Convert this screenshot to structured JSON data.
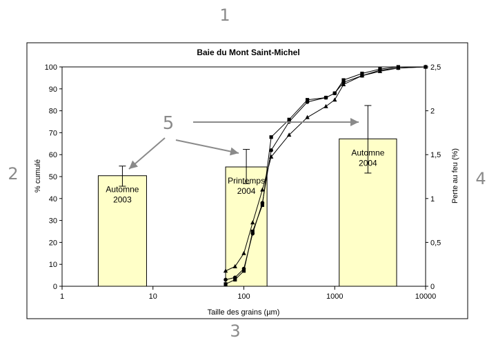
{
  "annotations": {
    "top": "1",
    "left": "2",
    "bottom": "3",
    "right": "4",
    "center": "5"
  },
  "chart_data": {
    "type": "line+bar",
    "title": "Baie du Mont Saint-Michel",
    "xlabel": "Taille des grains (µm)",
    "ylabel": "% cumulé",
    "y2label": "Perte au feu (%)",
    "xscale": "log",
    "xlim": [
      1,
      10000
    ],
    "ylim": [
      0,
      100
    ],
    "y2lim": [
      0,
      2.5
    ],
    "x_ticks": [
      "1",
      "10",
      "100",
      "1000",
      "10000"
    ],
    "y_ticks": [
      "0",
      "10",
      "20",
      "30",
      "40",
      "50",
      "60",
      "70",
      "80",
      "90",
      "100"
    ],
    "y2_ticks": [
      "0",
      "0,5",
      "1",
      "1,5",
      "2",
      "2,5"
    ],
    "grid": false,
    "bars": [
      {
        "label_lines": [
          "Automne",
          "2003"
        ],
        "x_from": 2.5,
        "x_to": 8.5,
        "value": 1.26,
        "err_low": 1.14,
        "err_high": 1.37
      },
      {
        "label_lines": [
          "Printemps",
          "2004"
        ],
        "x_from": 63,
        "x_to": 180,
        "value": 1.36,
        "err_low": 1.17,
        "err_high": 1.56
      },
      {
        "label_lines": [
          "Automne",
          "2004"
        ],
        "x_from": 1120,
        "x_to": 4800,
        "value": 1.68,
        "err_low": 1.29,
        "err_high": 2.06
      }
    ],
    "series": [
      {
        "marker": "circle",
        "x": [
          63,
          80,
          100,
          125,
          160,
          200,
          315,
          500,
          800,
          1000,
          1250,
          2000,
          3150,
          5000,
          10000
        ],
        "y": [
          3,
          4,
          8,
          24,
          38,
          62,
          75,
          84,
          86,
          88,
          93,
          96,
          98.5,
          99.5,
          100
        ]
      },
      {
        "marker": "square",
        "x": [
          63,
          80,
          100,
          125,
          160,
          200,
          315,
          500,
          800,
          1000,
          1250,
          2000,
          3150,
          5000,
          10000
        ],
        "y": [
          1,
          3,
          7,
          25,
          37,
          68,
          76,
          85,
          86,
          88,
          94,
          97,
          99,
          100,
          100
        ]
      },
      {
        "marker": "triangle",
        "x": [
          63,
          80,
          100,
          125,
          160,
          200,
          315,
          500,
          800,
          1000,
          1250,
          2000,
          3150,
          5000,
          10000
        ],
        "y": [
          7,
          9,
          15,
          29,
          44,
          59,
          69,
          77,
          82,
          85,
          92,
          96,
          98,
          99.5,
          100
        ]
      }
    ],
    "arrows": [
      {
        "from_xy": [
          239,
          200
        ],
        "to_xy": [
          187,
          245
        ]
      },
      {
        "from_xy": [
          255,
          203
        ],
        "to_xy": [
          346,
          222
        ]
      },
      {
        "from_xy": [
          280,
          177
        ],
        "to_xy": [
          520,
          177
        ]
      }
    ]
  }
}
